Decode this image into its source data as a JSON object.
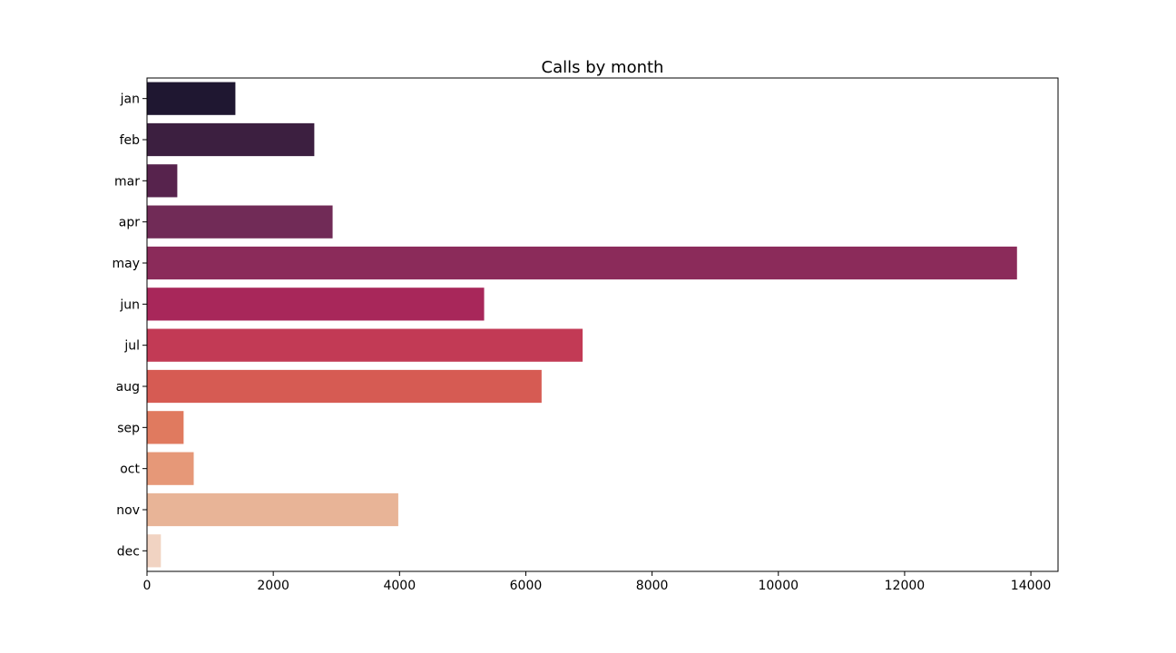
{
  "chart_data": {
    "type": "bar",
    "orientation": "horizontal",
    "title": "Calls by month",
    "xlabel": "",
    "ylabel": "",
    "categories": [
      "jan",
      "feb",
      "mar",
      "apr",
      "may",
      "jun",
      "jul",
      "aug",
      "sep",
      "oct",
      "nov",
      "dec"
    ],
    "values": [
      1400,
      2650,
      480,
      2940,
      13780,
      5340,
      6900,
      6250,
      580,
      740,
      3980,
      220
    ],
    "xlim": [
      0,
      14430
    ],
    "xticks": [
      0,
      2000,
      4000,
      6000,
      8000,
      10000,
      12000,
      14000
    ],
    "grid": false,
    "colors": [
      "#1f1731",
      "#3c1f40",
      "#57234d",
      "#712b57",
      "#8b2b5a",
      "#a8275a",
      "#c23a55",
      "#d65b53",
      "#e07a5f",
      "#e69878",
      "#e8b497",
      "#f1d3c2"
    ]
  }
}
